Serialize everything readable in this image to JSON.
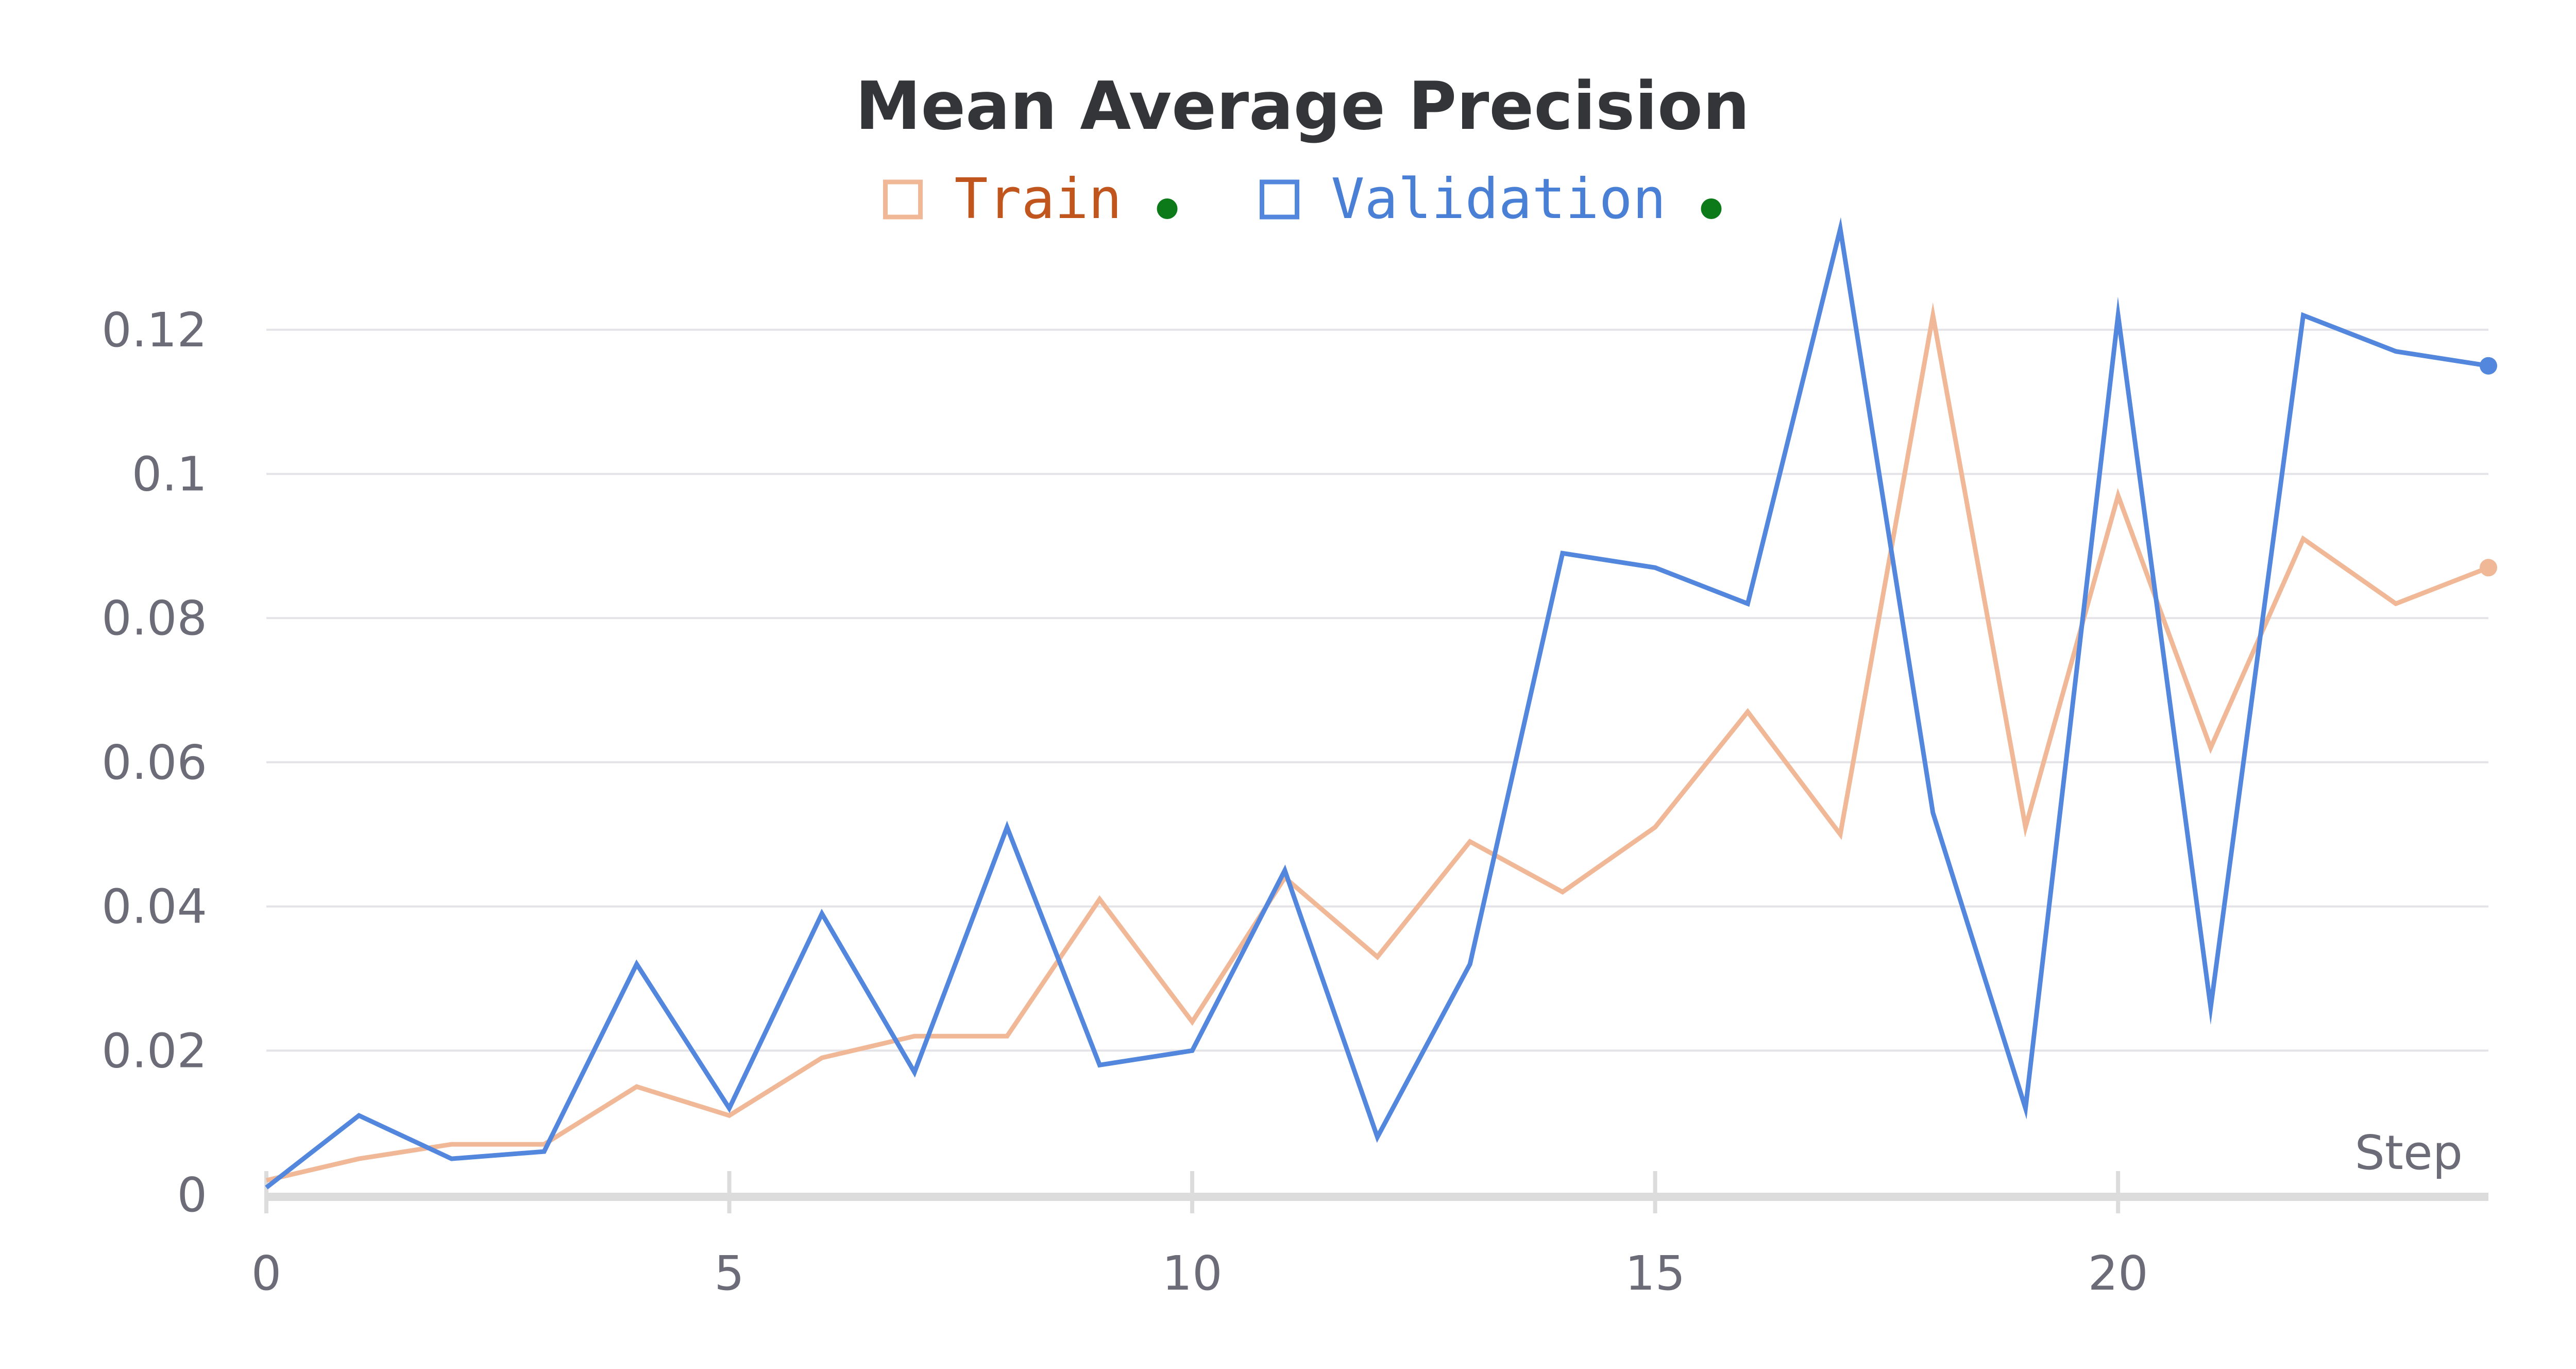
{
  "chart_data": {
    "type": "line",
    "title": "Mean Average Precision",
    "xlabel": "Step",
    "ylabel": "",
    "xlim": [
      0,
      24
    ],
    "ylim": [
      0,
      0.135
    ],
    "x_ticks": [
      0,
      5,
      10,
      15,
      20
    ],
    "x_tick_labels": [
      "0",
      "5",
      "10",
      "15",
      "20"
    ],
    "y_ticks": [
      0,
      0.02,
      0.04,
      0.06,
      0.08,
      0.1,
      0.12
    ],
    "y_tick_labels": [
      "0",
      "0.02",
      "0.04",
      "0.06",
      "0.08",
      "0.1",
      "0.12"
    ],
    "grid": true,
    "legend_position": "top-center",
    "x": [
      0,
      1,
      2,
      3,
      4,
      5,
      6,
      7,
      8,
      9,
      10,
      11,
      12,
      13,
      14,
      15,
      16,
      17,
      18,
      19,
      20,
      21,
      22,
      23,
      24
    ],
    "series": [
      {
        "name": "Train",
        "color": "#f0b896",
        "legend_text_color": "#c0561e",
        "status_dot_color": "#0d7a1a",
        "values": [
          0.002,
          0.005,
          0.007,
          0.007,
          0.015,
          0.011,
          0.019,
          0.022,
          0.022,
          0.041,
          0.024,
          0.044,
          0.033,
          0.049,
          0.042,
          0.051,
          0.067,
          0.05,
          0.122,
          0.051,
          0.097,
          0.062,
          0.091,
          0.082,
          0.087
        ]
      },
      {
        "name": "Validation",
        "color": "#5387dd",
        "legend_text_color": "#4a7fd6",
        "status_dot_color": "#0d7a1a",
        "values": [
          0.001,
          0.011,
          0.005,
          0.006,
          0.032,
          0.012,
          0.039,
          0.017,
          0.051,
          0.018,
          0.02,
          0.045,
          0.008,
          0.032,
          0.089,
          0.087,
          0.082,
          0.134,
          0.053,
          0.012,
          0.122,
          0.026,
          0.122,
          0.117,
          0.115
        ]
      }
    ]
  }
}
